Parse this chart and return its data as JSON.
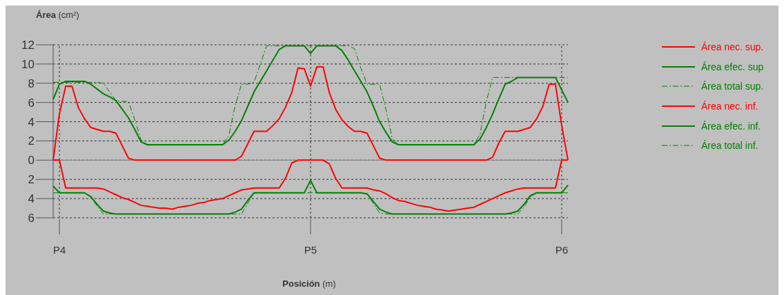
{
  "chart_data": {
    "type": "line",
    "xlabel": "Posición (m)",
    "ylabel": "Área (cm²)",
    "categories": [
      null,
      "P4",
      null,
      null,
      null,
      null,
      null,
      null,
      null,
      null,
      null,
      null,
      null,
      null,
      null,
      null,
      null,
      null,
      null,
      null,
      null,
      null,
      null,
      null,
      null,
      null,
      null,
      null,
      null,
      null,
      null,
      null,
      null,
      null,
      null,
      null,
      null,
      null,
      null,
      null,
      null,
      "P5",
      null,
      null,
      null,
      null,
      null,
      null,
      null,
      null,
      null,
      null,
      null,
      null,
      null,
      null,
      null,
      null,
      null,
      null,
      null,
      null,
      null,
      null,
      null,
      null,
      null,
      null,
      null,
      null,
      null,
      null,
      null,
      null,
      null,
      null,
      null,
      null,
      null,
      null,
      null,
      "P6",
      null
    ],
    "ylim": [
      -6,
      12
    ],
    "yticks": [
      {
        "value": -6,
        "label": "6"
      },
      {
        "value": -4,
        "label": "4"
      },
      {
        "value": -2,
        "label": "2"
      },
      0,
      2,
      4,
      6,
      8,
      10,
      12
    ],
    "grid": true,
    "legend": "right",
    "marker": "none",
    "ref_lines": [
      {
        "axis": "y",
        "value": 0,
        "color": "#808080",
        "line_style": "solid"
      }
    ],
    "series": [
      {
        "name": "Área nec. sup.",
        "color": "#ff0000",
        "line_style": "solid",
        "values": [
          0,
          4.8,
          7.7,
          7.7,
          5.5,
          4.3,
          3.4,
          3.2,
          3.0,
          3.0,
          2.8,
          1.5,
          0.2,
          0,
          0,
          0,
          0,
          0,
          0,
          0,
          0,
          0,
          0,
          0,
          0,
          0,
          0,
          0,
          0,
          0,
          0.4,
          1.7,
          3.0,
          3.0,
          3.0,
          3.6,
          4.3,
          5.5,
          7.0,
          9.6,
          9.5,
          7.7,
          9.7,
          9.7,
          7.0,
          5.3,
          4.2,
          3.5,
          3.0,
          3.0,
          2.8,
          1.5,
          0.2,
          0,
          0,
          0,
          0,
          0,
          0,
          0,
          0,
          0,
          0,
          0,
          0,
          0,
          0,
          0,
          0,
          0,
          0.3,
          1.8,
          3.0,
          3.0,
          3.0,
          3.2,
          3.4,
          4.3,
          5.6,
          7.9,
          7.9,
          3.6,
          0
        ]
      },
      {
        "name": "Área efec. sup",
        "color": "#008000",
        "line_style": "solid",
        "values": [
          6.3,
          7.9,
          8.2,
          8.2,
          8.2,
          8.2,
          7.9,
          7.4,
          6.9,
          6.6,
          6.2,
          5.3,
          4.4,
          3.2,
          1.9,
          1.6,
          1.6,
          1.6,
          1.6,
          1.6,
          1.6,
          1.6,
          1.6,
          1.6,
          1.6,
          1.6,
          1.6,
          1.6,
          2.1,
          3.0,
          4.1,
          5.6,
          7.1,
          8.2,
          9.3,
          10.4,
          11.5,
          11.9,
          11.9,
          11.9,
          11.9,
          11.1,
          11.9,
          11.9,
          11.9,
          11.9,
          11.4,
          10.4,
          9.3,
          8.2,
          7.1,
          5.6,
          4.0,
          2.9,
          1.9,
          1.6,
          1.6,
          1.6,
          1.6,
          1.6,
          1.6,
          1.6,
          1.6,
          1.6,
          1.6,
          1.6,
          1.6,
          1.6,
          2.2,
          3.4,
          4.8,
          6.4,
          7.9,
          8.2,
          8.6,
          8.6,
          8.6,
          8.6,
          8.6,
          8.6,
          8.6,
          7.3,
          6.0
        ]
      },
      {
        "name": "Área total sup.",
        "color": "#008000",
        "line_style": "dashed",
        "values": [
          8.1,
          8.1,
          8.1,
          8.1,
          8.1,
          8.1,
          8.1,
          8.1,
          8.0,
          7.1,
          6.2,
          6.1,
          6.1,
          4.2,
          2.1,
          1.6,
          1.6,
          1.6,
          1.6,
          1.6,
          1.6,
          1.6,
          1.6,
          1.6,
          1.6,
          1.6,
          1.6,
          1.6,
          2.6,
          5.7,
          7.9,
          7.9,
          8.1,
          10.0,
          11.9,
          11.9,
          11.9,
          11.9,
          11.9,
          11.9,
          11.9,
          11.9,
          11.9,
          11.9,
          11.9,
          11.9,
          11.9,
          11.9,
          11.6,
          9.6,
          7.9,
          7.9,
          7.9,
          5.3,
          2.3,
          1.6,
          1.6,
          1.6,
          1.6,
          1.6,
          1.6,
          1.6,
          1.6,
          1.6,
          1.6,
          1.6,
          1.6,
          1.6,
          2.7,
          6.1,
          8.6,
          8.6,
          8.6,
          8.6,
          8.6,
          8.6,
          8.6,
          8.6,
          8.6,
          8.6,
          8.6,
          8.6,
          8.6
        ]
      },
      {
        "name": "Área nec. inf.",
        "color": "#ff0000",
        "line_style": "solid",
        "values": [
          0,
          0,
          -2.9,
          -2.9,
          -2.9,
          -2.9,
          -2.9,
          -2.9,
          -3.0,
          -3.3,
          -3.6,
          -3.9,
          -4.1,
          -4.4,
          -4.7,
          -4.8,
          -4.9,
          -5.0,
          -5.0,
          -5.1,
          -4.9,
          -4.8,
          -4.7,
          -4.5,
          -4.4,
          -4.2,
          -4.1,
          -4.0,
          -3.7,
          -3.4,
          -3.1,
          -3.0,
          -2.9,
          -2.9,
          -2.9,
          -2.9,
          -2.9,
          -1.9,
          -0.3,
          0,
          0,
          0,
          0,
          0,
          -0.4,
          -1.9,
          -2.9,
          -2.9,
          -2.9,
          -2.9,
          -2.9,
          -3.1,
          -3.2,
          -3.5,
          -3.9,
          -4.2,
          -4.3,
          -4.5,
          -4.7,
          -4.8,
          -4.9,
          -5.1,
          -5.2,
          -5.3,
          -5.2,
          -5.1,
          -5.0,
          -4.9,
          -4.6,
          -4.3,
          -4.0,
          -3.7,
          -3.4,
          -3.2,
          -3.0,
          -2.9,
          -2.9,
          -2.9,
          -2.9,
          -2.9,
          -2.9,
          0,
          0
        ]
      },
      {
        "name": "Área efec. inf.",
        "color": "#008000",
        "line_style": "solid",
        "values": [
          -2.7,
          -3.4,
          -3.4,
          -3.4,
          -3.4,
          -3.4,
          -3.8,
          -4.6,
          -5.3,
          -5.5,
          -5.6,
          -5.6,
          -5.6,
          -5.6,
          -5.6,
          -5.6,
          -5.6,
          -5.6,
          -5.6,
          -5.6,
          -5.6,
          -5.6,
          -5.6,
          -5.6,
          -5.6,
          -5.6,
          -5.6,
          -5.6,
          -5.6,
          -5.4,
          -5.1,
          -4.2,
          -3.4,
          -3.4,
          -3.4,
          -3.4,
          -3.4,
          -3.4,
          -3.4,
          -3.4,
          -3.4,
          -2.1,
          -3.4,
          -3.4,
          -3.4,
          -3.4,
          -3.4,
          -3.4,
          -3.4,
          -3.4,
          -3.5,
          -4.3,
          -5.1,
          -5.4,
          -5.6,
          -5.6,
          -5.6,
          -5.6,
          -5.6,
          -5.6,
          -5.6,
          -5.6,
          -5.6,
          -5.6,
          -5.6,
          -5.6,
          -5.6,
          -5.6,
          -5.6,
          -5.6,
          -5.6,
          -5.6,
          -5.6,
          -5.5,
          -5.3,
          -4.6,
          -3.7,
          -3.4,
          -3.4,
          -3.4,
          -3.4,
          -3.4,
          -2.6
        ]
      },
      {
        "name": "Área total inf.",
        "color": "#008000",
        "line_style": "dashed",
        "values": [
          -3.4,
          -3.4,
          -3.4,
          -3.4,
          -3.4,
          -3.4,
          -3.8,
          -4.8,
          -5.6,
          -5.6,
          -5.6,
          -5.6,
          -5.6,
          -5.6,
          -5.6,
          -5.6,
          -5.6,
          -5.6,
          -5.6,
          -5.6,
          -5.6,
          -5.6,
          -5.6,
          -5.6,
          -5.6,
          -5.6,
          -5.6,
          -5.6,
          -5.6,
          -5.6,
          -5.6,
          -4.5,
          -3.4,
          -3.4,
          -3.4,
          -3.4,
          -3.4,
          -3.4,
          -3.4,
          -3.4,
          -3.4,
          -3.4,
          -3.4,
          -3.4,
          -3.4,
          -3.4,
          -3.4,
          -3.4,
          -3.4,
          -3.4,
          -3.5,
          -4.5,
          -5.5,
          -5.6,
          -5.6,
          -5.6,
          -5.6,
          -5.6,
          -5.6,
          -5.6,
          -5.6,
          -5.6,
          -5.6,
          -5.6,
          -5.6,
          -5.6,
          -5.6,
          -5.6,
          -5.6,
          -5.6,
          -5.6,
          -5.6,
          -5.6,
          -5.6,
          -5.6,
          -4.9,
          -3.8,
          -3.4,
          -3.4,
          -3.4,
          -3.4,
          -3.4,
          -3.4
        ]
      }
    ]
  }
}
